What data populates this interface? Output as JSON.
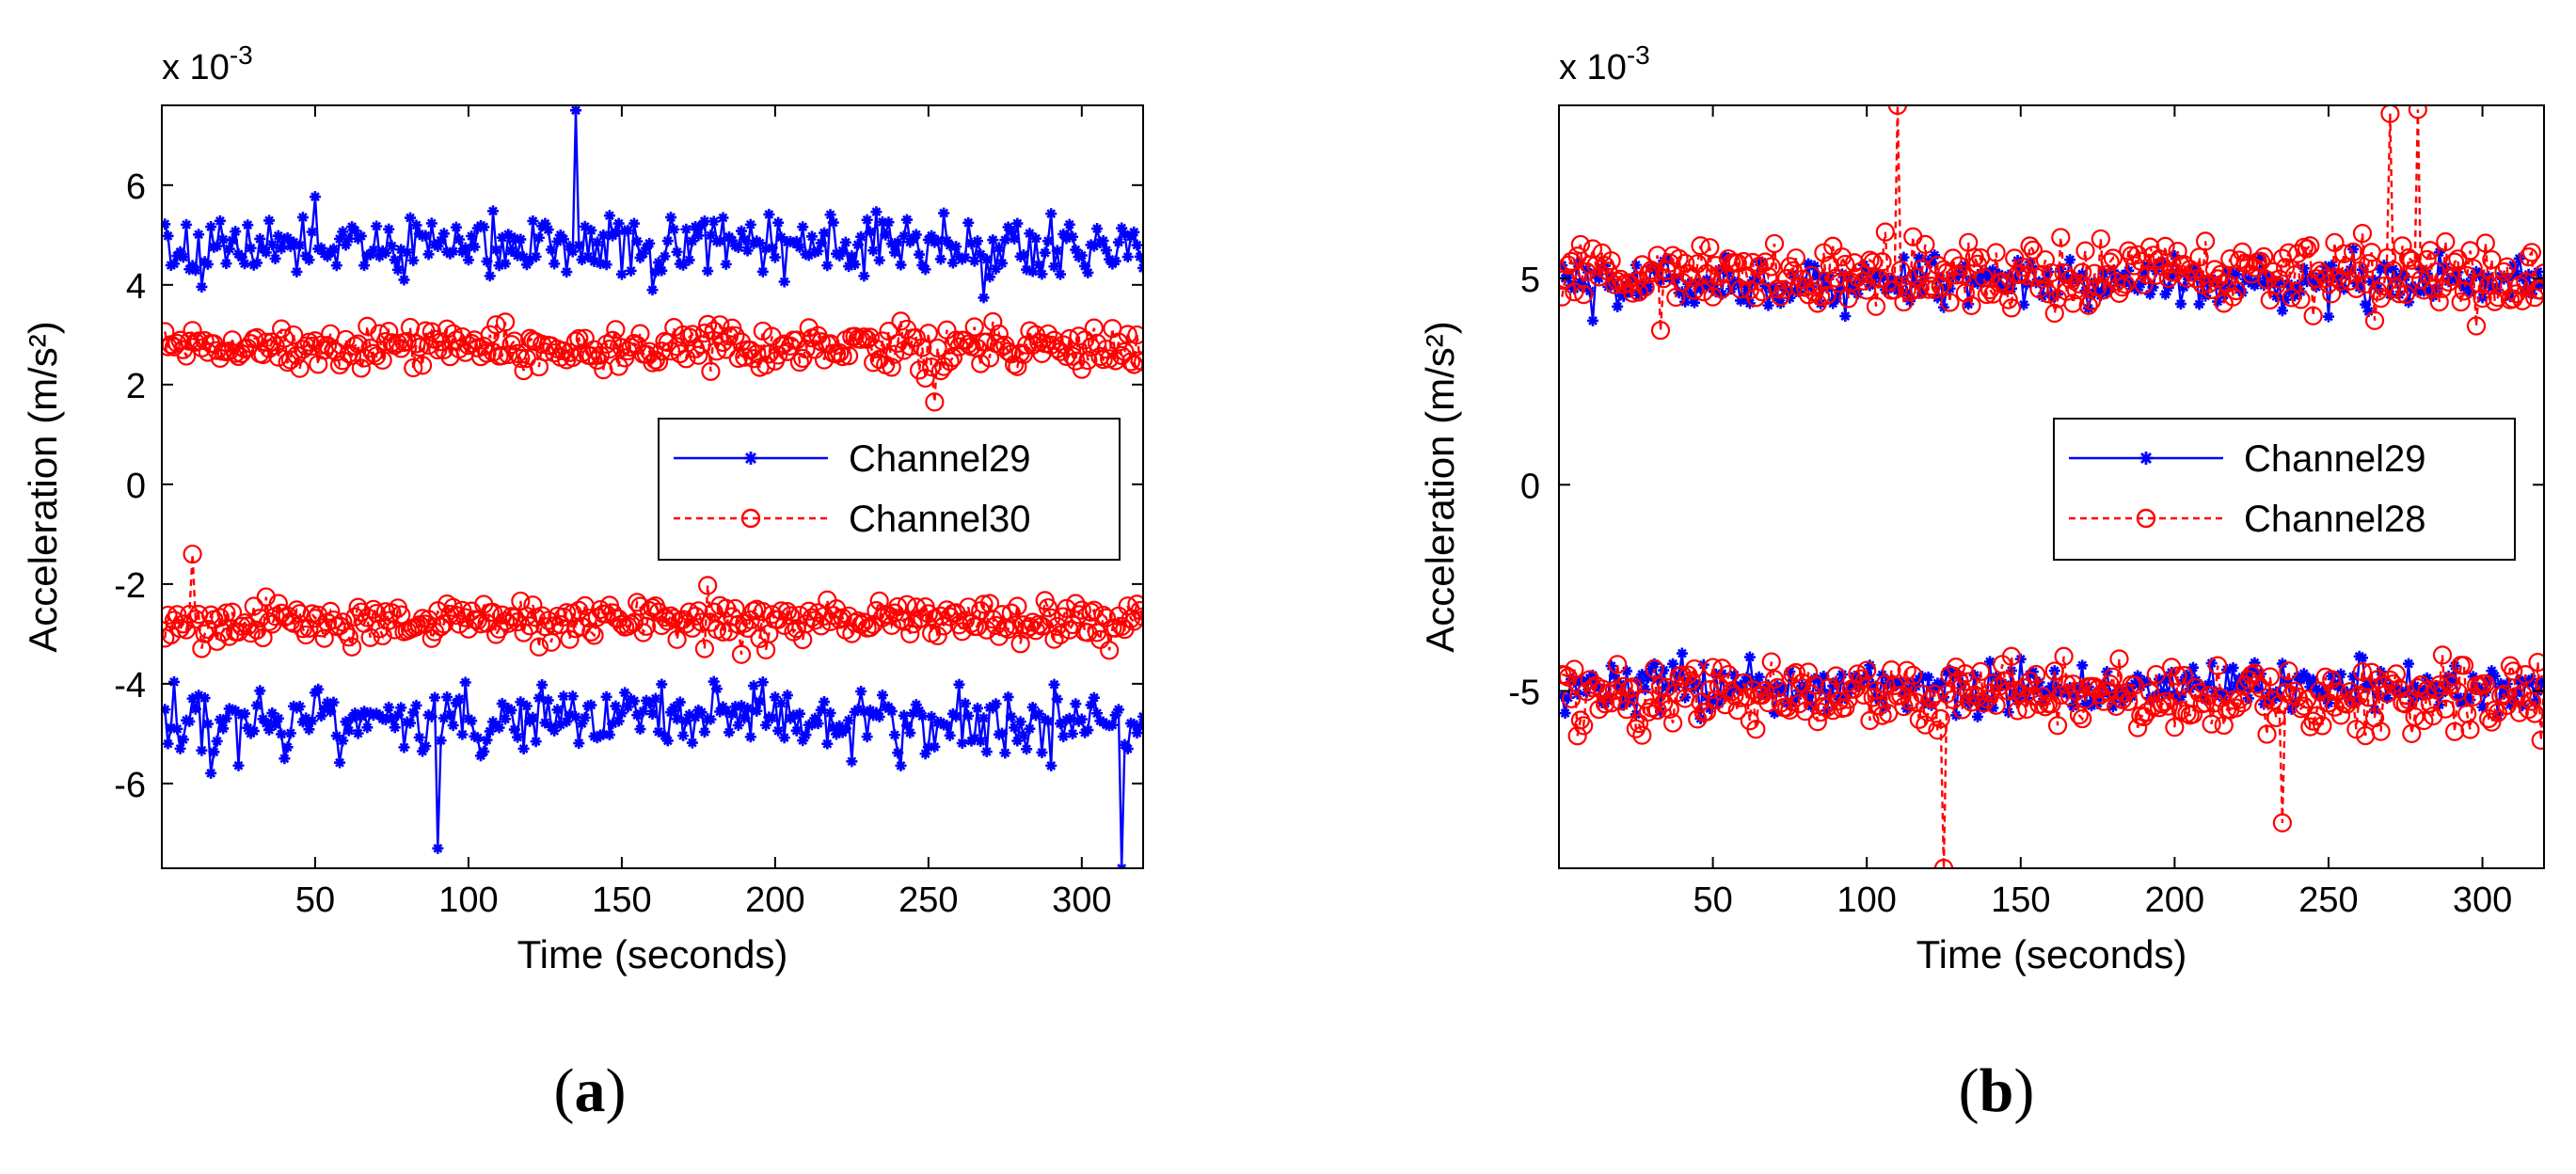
{
  "chart_data": [
    {
      "type": "line",
      "panel": "(a)",
      "panel_letter": "a",
      "xlabel": "Time (seconds)",
      "ylabel": "Acceleration (m/s²)",
      "y_multiplier": "x 10",
      "y_exponent": "-3",
      "xlim": [
        0,
        320
      ],
      "ylim": [
        -7.7,
        7.6
      ],
      "xticks": [
        50,
        100,
        150,
        200,
        250,
        300
      ],
      "yticks": [
        -6,
        -4,
        -2,
        0,
        2,
        4,
        6
      ],
      "grid": false,
      "legend_position": "center-right",
      "series": [
        {
          "name": "Channel29",
          "style": "solid",
          "marker": "star",
          "color": "#0000ff",
          "band_mean": 4.75,
          "band_noise": 0.85,
          "sign": "both",
          "note": "approx envelope ±(3.2–6.9)"
        },
        {
          "name": "Channel30",
          "style": "dashed",
          "marker": "circle",
          "color": "#ff0000",
          "band_mean": 2.75,
          "band_noise": 0.55,
          "sign": "both",
          "note": "approx envelope ±(1.7–4.7)"
        }
      ],
      "highlighted_points": [
        {
          "series": "Channel29",
          "x": 135,
          "y": 7.5
        },
        {
          "series": "Channel29",
          "x": 90,
          "y": -7.3
        },
        {
          "series": "Channel29",
          "x": 313,
          "y": -7.7
        },
        {
          "series": "Channel30",
          "x": 10,
          "y": -1.4
        },
        {
          "series": "Channel30",
          "x": 252,
          "y": 1.65
        }
      ]
    },
    {
      "type": "line",
      "panel": "(b)",
      "panel_letter": "b",
      "xlabel": "Time (seconds)",
      "ylabel": "Acceleration (m/s²)",
      "y_multiplier": "x 10",
      "y_exponent": "-3",
      "xlim": [
        0,
        320
      ],
      "ylim": [
        -9.3,
        9.2
      ],
      "xticks": [
        50,
        100,
        150,
        200,
        250,
        300
      ],
      "yticks": [
        -5,
        0,
        5
      ],
      "grid": false,
      "legend_position": "center-right",
      "series": [
        {
          "name": "Channel29",
          "style": "solid",
          "marker": "star",
          "color": "#0000ff",
          "band_mean": 4.9,
          "band_noise": 0.75,
          "sign": "both",
          "note": "approx envelope ±(2.8–7.5)"
        },
        {
          "name": "Channel28",
          "style": "dashed",
          "marker": "circle",
          "color": "#ff0000",
          "band_mean": 5.1,
          "band_noise": 1.05,
          "sign": "both",
          "note": "approx envelope ±(3.0–9.2)"
        }
      ],
      "highlighted_points": [
        {
          "series": "Channel28",
          "x": 110,
          "y": 9.2
        },
        {
          "series": "Channel28",
          "x": 270,
          "y": 9.0
        },
        {
          "series": "Channel28",
          "x": 279,
          "y": 9.1
        },
        {
          "series": "Channel28",
          "x": 125,
          "y": -9.3
        },
        {
          "series": "Channel28",
          "x": 235,
          "y": -8.2
        }
      ]
    }
  ]
}
